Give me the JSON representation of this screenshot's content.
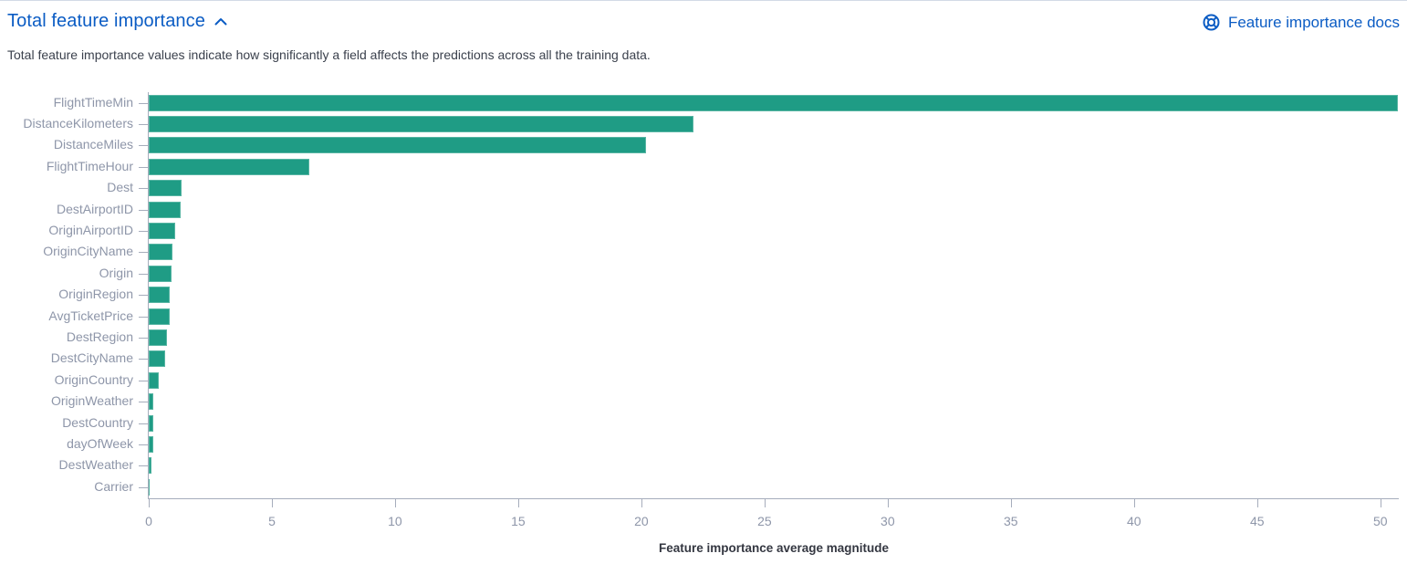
{
  "header": {
    "title": "Total feature importance",
    "collapse_icon": "chevron-up",
    "docs_label": "Feature importance docs",
    "docs_icon": "documentation-life-ring",
    "link_color": "#0b5cc4"
  },
  "subtitle": "Total feature importance values indicate how significantly a field affects the predictions across all the training data.",
  "chart_data": {
    "type": "bar",
    "orientation": "horizontal",
    "title": "Total feature importance",
    "xlabel": "Feature importance average magnitude",
    "ylabel": "",
    "categories": [
      "FlightTimeMin",
      "DistanceKilometers",
      "DistanceMiles",
      "FlightTimeHour",
      "Dest",
      "DestAirportID",
      "OriginAirportID",
      "OriginCityName",
      "Origin",
      "OriginRegion",
      "AvgTicketPrice",
      "DestRegion",
      "DestCityName",
      "OriginCountry",
      "OriginWeather",
      "DestCountry",
      "dayOfWeek",
      "DestWeather",
      "Carrier"
    ],
    "values": [
      50.72,
      22.1,
      20.2,
      6.52,
      1.33,
      1.3,
      1.07,
      0.96,
      0.93,
      0.87,
      0.85,
      0.74,
      0.67,
      0.41,
      0.19,
      0.19,
      0.18,
      0.12,
      0.05
    ],
    "xticks": [
      0,
      5,
      10,
      15,
      20,
      25,
      30,
      35,
      40,
      45,
      50
    ],
    "xlim": [
      0,
      50.75
    ],
    "grid": false,
    "legend": false,
    "bar_color": "#1f9c85",
    "axis_color": "#a6adbc",
    "tick_label_color": "#8e96a9",
    "axis_title_color": "#343741"
  }
}
